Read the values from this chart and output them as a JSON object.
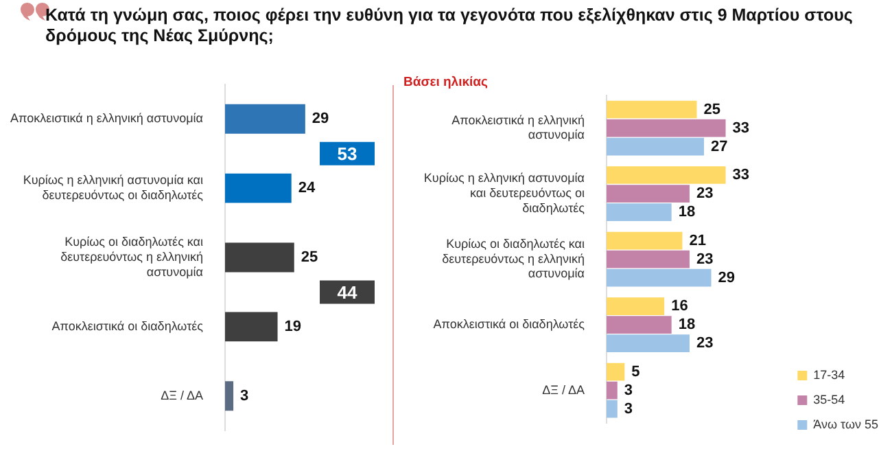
{
  "chart_data": [
    {
      "type": "bar",
      "orientation": "horizontal",
      "title": "Κατά τη γνώμη σας, ποιος φέρει την ευθύνη για τα γεγονότα που εξελίχθηκαν στις 9 Μαρτίου στους δρόμους της Νέας Σμύρνης;",
      "categories": [
        "Αποκλειστικά η ελληνική αστυνομία",
        "Κυρίως η ελληνική αστυνομία και δευτερευόντως οι διαδηλωτές",
        "Κυρίως οι διαδηλωτές και δευτερευόντως η ελληνική αστυνομία",
        "Αποκλειστικά οι διαδηλωτές",
        "ΔΞ / ΔΑ"
      ],
      "values": [
        29,
        24,
        25,
        19,
        3
      ],
      "colors": [
        "#2e75b6",
        "#0070c0",
        "#3f3f3f",
        "#3f3f3f",
        "#5b6b82"
      ],
      "data_labels": true,
      "annotations": [
        "53",
        "44"
      ],
      "legend": false
    },
    {
      "type": "bar",
      "orientation": "horizontal",
      "title": "Βάσει ηλικίας",
      "categories": [
        "Αποκλειστικά η ελληνική αστυνομία",
        "Κυρίως η ελληνική αστυνομία και δευτερευόντως οι διαδηλωτές",
        "Κυρίως οι διαδηλωτές και δευτερευόντως η ελληνική αστυνομία",
        "Αποκλειστικά οι διαδηλωτές",
        "ΔΞ / ΔΑ"
      ],
      "series": [
        {
          "name": "17-34",
          "color": "#ffd966",
          "values": [
            25,
            33,
            21,
            16,
            5
          ]
        },
        {
          "name": "35-54",
          "color": "#c383a8",
          "values": [
            33,
            23,
            23,
            18,
            3
          ]
        },
        {
          "name": "Άνω των 55",
          "color": "#9dc3e6",
          "values": [
            27,
            18,
            29,
            23,
            3
          ]
        }
      ],
      "data_labels": true,
      "legend": "right bottom"
    }
  ]
}
